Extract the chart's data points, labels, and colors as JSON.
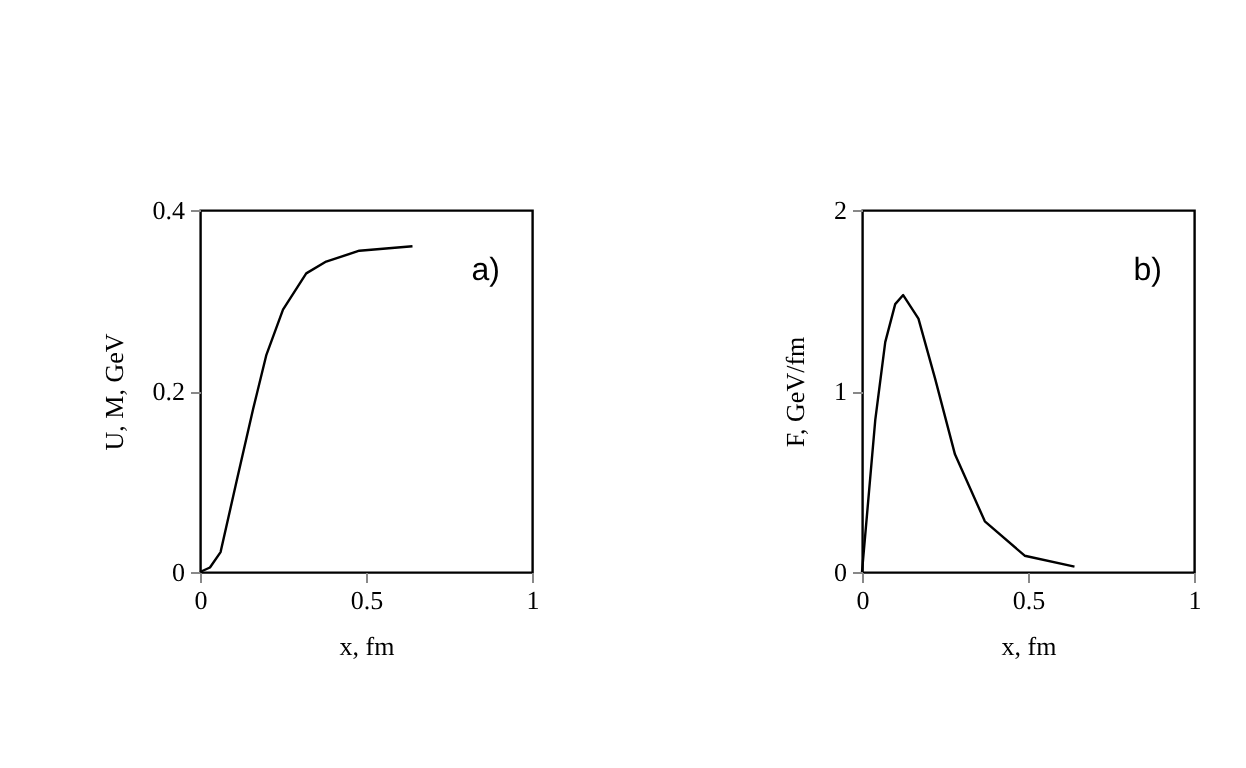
{
  "chart_data": [
    {
      "type": "line",
      "xlabel": "x, fm",
      "ylabel": "U, M, GeV",
      "annotations": [
        "a)"
      ],
      "xlim": [
        0,
        1
      ],
      "ylim": [
        0,
        0.4
      ],
      "xticks": [
        0,
        0.5,
        1
      ],
      "yticks": [
        0,
        0.2,
        0.4
      ],
      "grid": false,
      "marker": "none",
      "line_style": "solid",
      "series": [
        {
          "color": "#000000",
          "x": [
            0,
            0.03,
            0.062,
            0.11,
            0.16,
            0.2,
            0.25,
            0.32,
            0.38,
            0.48,
            0.64
          ],
          "values": [
            0,
            0.005,
            0.022,
            0.1,
            0.18,
            0.24,
            0.29,
            0.33,
            0.343,
            0.355,
            0.36
          ]
        }
      ]
    },
    {
      "type": "line",
      "xlabel": "x, fm",
      "ylabel": "F, GeV/fm",
      "annotations": [
        "b)"
      ],
      "xlim": [
        0,
        1
      ],
      "ylim": [
        0,
        2
      ],
      "xticks": [
        0,
        0.5,
        1
      ],
      "yticks": [
        0,
        1,
        2
      ],
      "grid": false,
      "marker": "none",
      "line_style": "solid",
      "series": [
        {
          "color": "#000000",
          "x": [
            0,
            0.04,
            0.07,
            0.1,
            0.124,
            0.17,
            0.22,
            0.28,
            0.37,
            0.49,
            0.64
          ],
          "values": [
            0,
            0.84,
            1.27,
            1.48,
            1.53,
            1.4,
            1.07,
            0.65,
            0.28,
            0.09,
            0.03
          ]
        }
      ]
    }
  ]
}
